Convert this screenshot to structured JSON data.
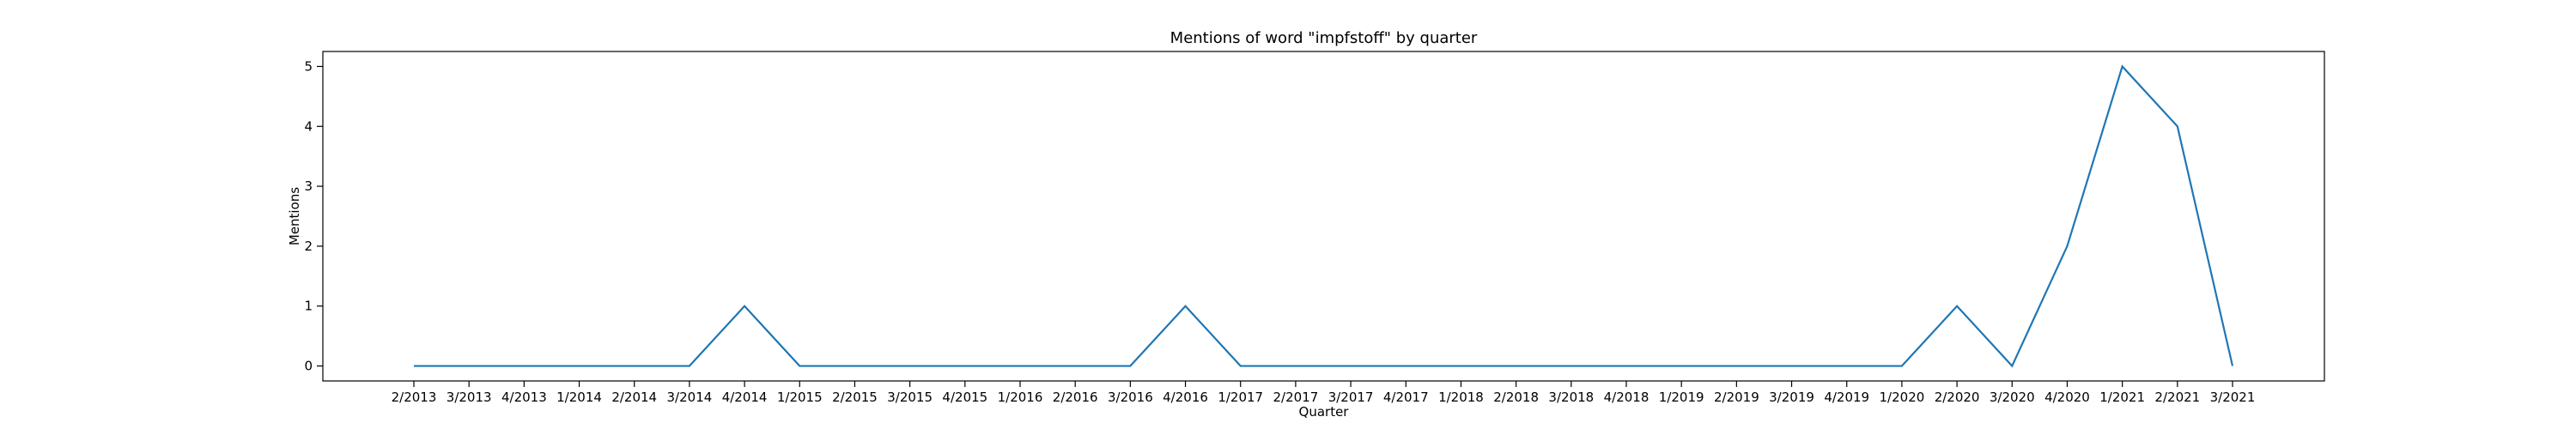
{
  "chart_data": {
    "type": "line",
    "title": "Mentions of word \"impfstoff\" by quarter",
    "xlabel": "Quarter",
    "ylabel": "Mentions",
    "categories": [
      "2/2013",
      "3/2013",
      "4/2013",
      "1/2014",
      "2/2014",
      "3/2014",
      "4/2014",
      "1/2015",
      "2/2015",
      "3/2015",
      "4/2015",
      "1/2016",
      "2/2016",
      "3/2016",
      "4/2016",
      "1/2017",
      "2/2017",
      "3/2017",
      "4/2017",
      "1/2018",
      "2/2018",
      "3/2018",
      "4/2018",
      "1/2019",
      "2/2019",
      "3/2019",
      "4/2019",
      "1/2020",
      "2/2020",
      "3/2020",
      "4/2020",
      "1/2021",
      "2/2021",
      "3/2021"
    ],
    "values": [
      0,
      0,
      0,
      0,
      0,
      0,
      1,
      0,
      0,
      0,
      0,
      0,
      0,
      0,
      1,
      0,
      0,
      0,
      0,
      0,
      0,
      0,
      0,
      0,
      0,
      0,
      0,
      0,
      1,
      0,
      2,
      5,
      4,
      0
    ],
    "yticks": [
      0,
      1,
      2,
      3,
      4,
      5
    ],
    "ylim": [
      -0.25,
      5.25
    ],
    "grid": false,
    "line_color": "#1f77b4"
  }
}
